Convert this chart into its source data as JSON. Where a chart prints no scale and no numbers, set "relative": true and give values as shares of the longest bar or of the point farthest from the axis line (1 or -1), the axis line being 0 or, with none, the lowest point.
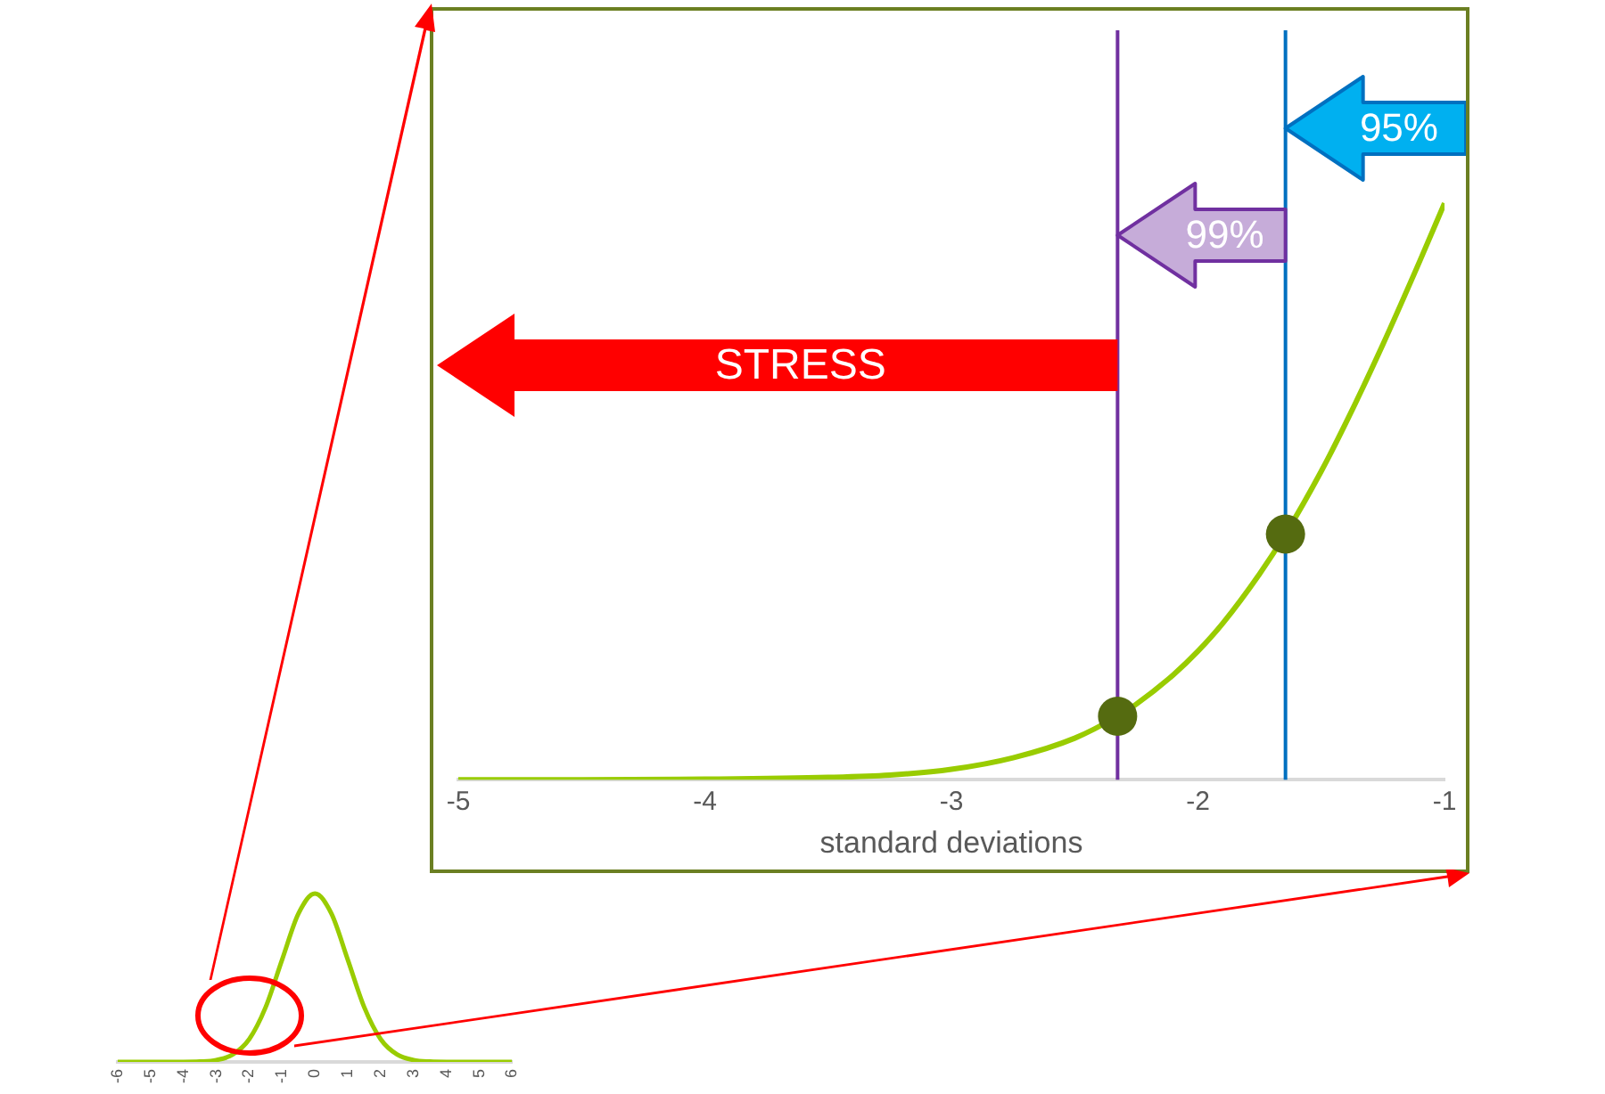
{
  "chart_data": [
    {
      "type": "line",
      "xlabel": "standard deviations",
      "relative": true,
      "xlim": [
        -5,
        -1
      ],
      "xticks": [
        -5,
        -4,
        -3,
        -2,
        -1
      ],
      "grid": false,
      "legend": false,
      "series": [
        {
          "type": "line",
          "color": "#99cc00",
          "marker": "none",
          "x": [
            -5,
            -4.5,
            -4,
            -3.5,
            -3.25,
            -3,
            -2.75,
            -2.5,
            -2.326,
            -2.25,
            -2.1,
            -2,
            -1.9,
            -1.75,
            -1.645,
            -1.5,
            -1.4,
            -1.25,
            -1.1,
            -1
          ],
          "values": [
            0,
            0,
            0.001,
            0.004,
            0.008,
            0.018,
            0.038,
            0.072,
            0.11,
            0.131,
            0.182,
            0.223,
            0.271,
            0.357,
            0.426,
            0.535,
            0.619,
            0.755,
            0.9,
            1
          ]
        },
        {
          "type": "scatter",
          "color": "#556b10",
          "marker": "circle",
          "x": [
            -2.326,
            -1.645
          ],
          "values": [
            0.11,
            0.426
          ]
        }
      ],
      "ref_lines": [
        {
          "axis": "x",
          "value": -2.326,
          "color": "#7030a0"
        },
        {
          "axis": "x",
          "value": -1.645,
          "color": "#0070c0"
        }
      ],
      "annotations": [
        "99%",
        "95%",
        "STRESS"
      ]
    },
    {
      "type": "line",
      "relative": true,
      "xlim": [
        -6,
        6
      ],
      "xticks": [
        -6,
        -5,
        -4,
        -3,
        -2,
        -1,
        0,
        1,
        2,
        3,
        4,
        5,
        6
      ],
      "grid": false,
      "legend": false,
      "series": [
        {
          "type": "line",
          "color": "#99cc00",
          "marker": "none",
          "x": [
            -6,
            -5,
            -4,
            -3.5,
            -3,
            -2.5,
            -2,
            -1.5,
            -1,
            -0.5,
            0,
            0.5,
            1,
            1.5,
            2,
            2.5,
            3,
            3.5,
            4,
            5,
            6
          ],
          "values": [
            0,
            0,
            0,
            0.002,
            0.011,
            0.044,
            0.135,
            0.325,
            0.607,
            0.882,
            1,
            0.882,
            0.607,
            0.325,
            0.135,
            0.044,
            0.011,
            0.002,
            0,
            0,
            0
          ]
        }
      ]
    }
  ]
}
